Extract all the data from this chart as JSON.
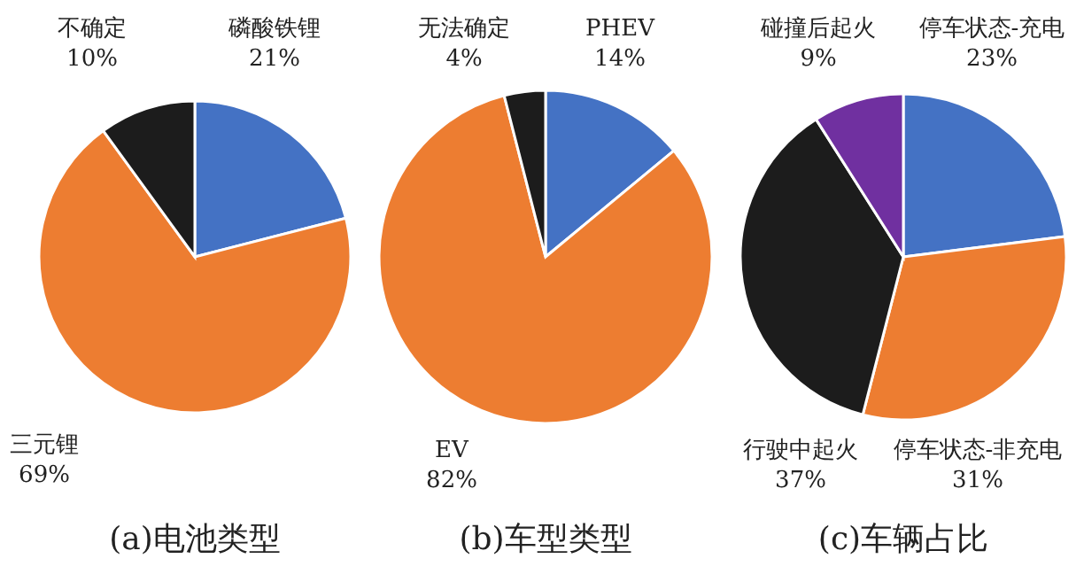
{
  "chart_data": [
    {
      "type": "pie",
      "title": "(a)电池类型",
      "categories": [
        "磷酸铁锂",
        "三元锂",
        "不确定"
      ],
      "values": [
        21,
        69,
        10
      ],
      "value_labels": [
        "21%",
        "69%",
        "10%"
      ],
      "colors": [
        "#4472c4",
        "#ed7d31",
        "#1c1c1c"
      ]
    },
    {
      "type": "pie",
      "title": "(b)车型类型",
      "categories": [
        "PHEV",
        "EV",
        "无法确定"
      ],
      "values": [
        14,
        82,
        4
      ],
      "value_labels": [
        "14%",
        "82%",
        "4%"
      ],
      "colors": [
        "#4472c4",
        "#ed7d31",
        "#1c1c1c"
      ]
    },
    {
      "type": "pie",
      "title": "(c)车辆占比",
      "categories": [
        "停车状态-充电",
        "停车状态-非充电",
        "行驶中起火",
        "碰撞后起火"
      ],
      "values": [
        23,
        31,
        37,
        9
      ],
      "value_labels": [
        "23%",
        "31%",
        "37%",
        "9%"
      ],
      "colors": [
        "#4472c4",
        "#ed7d31",
        "#1c1c1c",
        "#7030a0"
      ]
    }
  ]
}
